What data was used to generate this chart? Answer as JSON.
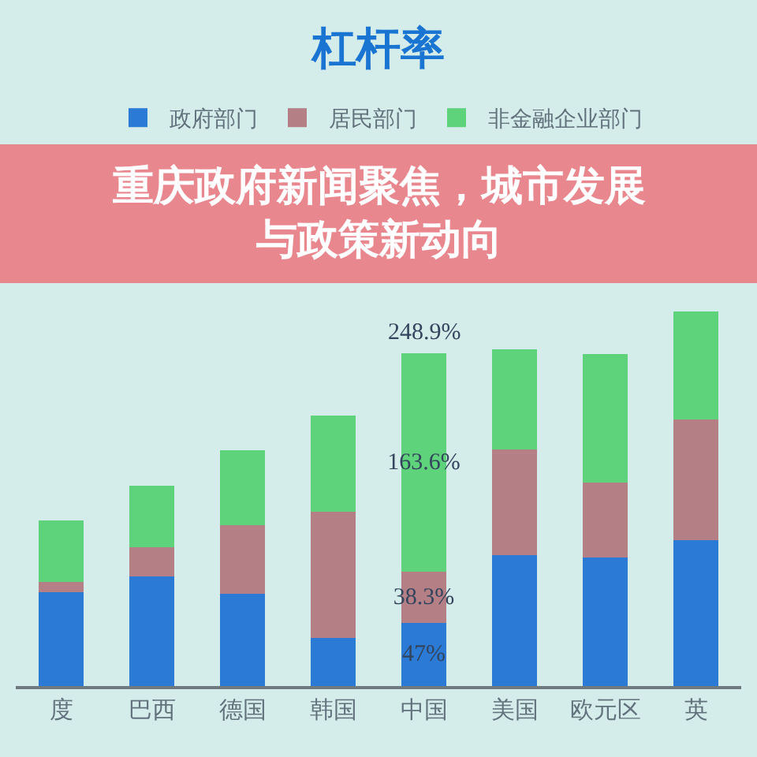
{
  "chart_data": {
    "type": "bar",
    "title": "杠杆率",
    "annotations": [
      "重庆政府新闻聚焦，城市发展与政策新动向"
    ],
    "categories": [
      "度",
      "巴西",
      "德国",
      "韩国",
      "中国",
      "美国",
      "欧元区",
      "英"
    ],
    "stacked": true,
    "legend": "top",
    "tick_labels": "x",
    "series": [
      {
        "name": "政府部门",
        "color": "#2a7ad6",
        "values": [
          70,
          82,
          69,
          36,
          47,
          98,
          96,
          109
        ],
        "value_labels": [
          null,
          null,
          null,
          null,
          "47%",
          null,
          null,
          null
        ]
      },
      {
        "name": "居民部门",
        "color": "#b57f86",
        "values": [
          8,
          22,
          51,
          94,
          38.3,
          79,
          56,
          90
        ],
        "value_labels": [
          null,
          null,
          null,
          null,
          "38.3%",
          null,
          null,
          null
        ]
      },
      {
        "name": "非金融企业部门",
        "color": "#5fd27c",
        "values": [
          46,
          46,
          56,
          72,
          163.6,
          75,
          96,
          81
        ],
        "value_labels": [
          null,
          null,
          null,
          null,
          "163.6%",
          null,
          null,
          null
        ]
      }
    ],
    "totals": [
      null,
      null,
      null,
      null,
      "248.9%",
      null,
      null,
      null
    ]
  }
}
